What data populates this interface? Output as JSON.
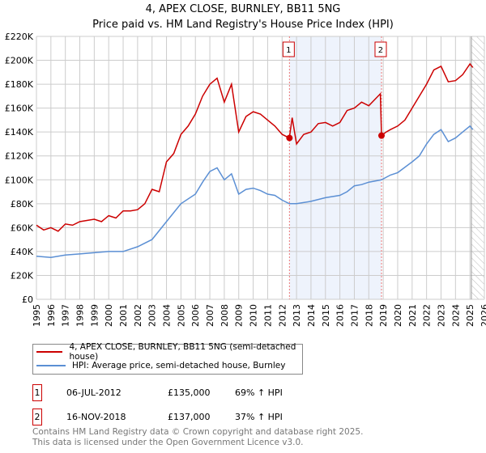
{
  "chart_data": {
    "type": "line",
    "title": "4, APEX CLOSE, BURNLEY, BB11 5NG",
    "subtitle": "Price paid vs. HM Land Registry's House Price Index (HPI)",
    "xlim": [
      1995,
      2026
    ],
    "ylim": [
      0,
      220000
    ],
    "x_ticks": [
      "1995",
      "1996",
      "1997",
      "1998",
      "1999",
      "2000",
      "2001",
      "2002",
      "2003",
      "2004",
      "2005",
      "2006",
      "2007",
      "2008",
      "2009",
      "2010",
      "2011",
      "2012",
      "2013",
      "2014",
      "2015",
      "2016",
      "2017",
      "2018",
      "2019",
      "2020",
      "2021",
      "2022",
      "2023",
      "2024",
      "2025",
      "2026"
    ],
    "y_ticks": [
      "£0",
      "£20K",
      "£40K",
      "£60K",
      "£80K",
      "£100K",
      "£120K",
      "£140K",
      "£160K",
      "£180K",
      "£200K",
      "£220K"
    ],
    "grid": true,
    "series": [
      {
        "name": "4, APEX CLOSE, BURNLEY, BB11 5NG (semi-detached house)",
        "color": "#cc0000",
        "x": [
          1995,
          1995.5,
          1996,
          1996.5,
          1997,
          1997.5,
          1998,
          1998.5,
          1999,
          1999.5,
          2000,
          2000.5,
          2001,
          2001.5,
          2002,
          2002.5,
          2003,
          2003.5,
          2004,
          2004.5,
          2005,
          2005.5,
          2006,
          2006.5,
          2007,
          2007.5,
          2008,
          2008.5,
          2009,
          2009.5,
          2010,
          2010.5,
          2011,
          2011.5,
          2012,
          2012.5,
          2012.7,
          2013,
          2013.5,
          2014,
          2014.5,
          2015,
          2015.5,
          2016,
          2016.5,
          2017,
          2017.5,
          2018,
          2018.8,
          2018.88,
          2019.2,
          2019.5,
          2020,
          2020.5,
          2021,
          2021.5,
          2022,
          2022.5,
          2023,
          2023.5,
          2024,
          2024.5,
          2025,
          2025.2
        ],
        "y": [
          62000,
          58000,
          60000,
          57000,
          63000,
          62000,
          65000,
          66000,
          67000,
          65000,
          70000,
          68000,
          74000,
          74000,
          75000,
          80000,
          92000,
          90000,
          115000,
          122000,
          138000,
          145000,
          155000,
          170000,
          180000,
          185000,
          165000,
          180000,
          140000,
          153000,
          157000,
          155000,
          150000,
          145000,
          138000,
          135000,
          152000,
          130000,
          138000,
          140000,
          147000,
          148000,
          145000,
          148000,
          158000,
          160000,
          165000,
          162000,
          172000,
          137000,
          140000,
          142000,
          145000,
          150000,
          160000,
          170000,
          180000,
          192000,
          195000,
          182000,
          183000,
          188000,
          197000,
          194000
        ]
      },
      {
        "name": "HPI: Average price, semi-detached house, Burnley",
        "color": "#5b8fd4",
        "x": [
          1995,
          1996,
          1997,
          1998,
          1999,
          2000,
          2001,
          2002,
          2003,
          2004,
          2005,
          2006,
          2006.5,
          2007,
          2007.5,
          2008,
          2008.5,
          2009,
          2009.5,
          2010,
          2010.5,
          2011,
          2011.5,
          2012,
          2012.5,
          2013,
          2014,
          2015,
          2016,
          2016.5,
          2017,
          2017.5,
          2018,
          2018.88,
          2019.5,
          2020,
          2021,
          2021.5,
          2022,
          2022.5,
          2023,
          2023.5,
          2024,
          2024.5,
          2025,
          2025.2
        ],
        "y": [
          36000,
          35000,
          37000,
          38000,
          39000,
          40000,
          40000,
          44000,
          50000,
          65000,
          80000,
          88000,
          98000,
          107000,
          110000,
          100000,
          105000,
          88000,
          92000,
          93000,
          91000,
          88000,
          87000,
          83000,
          80000,
          80000,
          82000,
          85000,
          87000,
          90000,
          95000,
          96000,
          98000,
          100000,
          104000,
          106000,
          115000,
          120000,
          130000,
          138000,
          142000,
          132000,
          135000,
          140000,
          145000,
          142000
        ]
      }
    ],
    "annotations": [
      {
        "label": "1",
        "date": "06-JUL-2012",
        "x": 2012.51,
        "price": "£135,000",
        "value": 135000,
        "hpi": "69% ↑ HPI"
      },
      {
        "label": "2",
        "date": "16-NOV-2018",
        "x": 2018.88,
        "price": "£137,000",
        "value": 137000,
        "hpi": "37% ↑ HPI"
      }
    ],
    "shaded_range": [
      2012.51,
      2018.88
    ],
    "hatched_from": 2025.1
  },
  "footer": {
    "line1": "Contains HM Land Registry data © Crown copyright and database right 2025.",
    "line2": "This data is licensed under the Open Government Licence v3.0."
  }
}
